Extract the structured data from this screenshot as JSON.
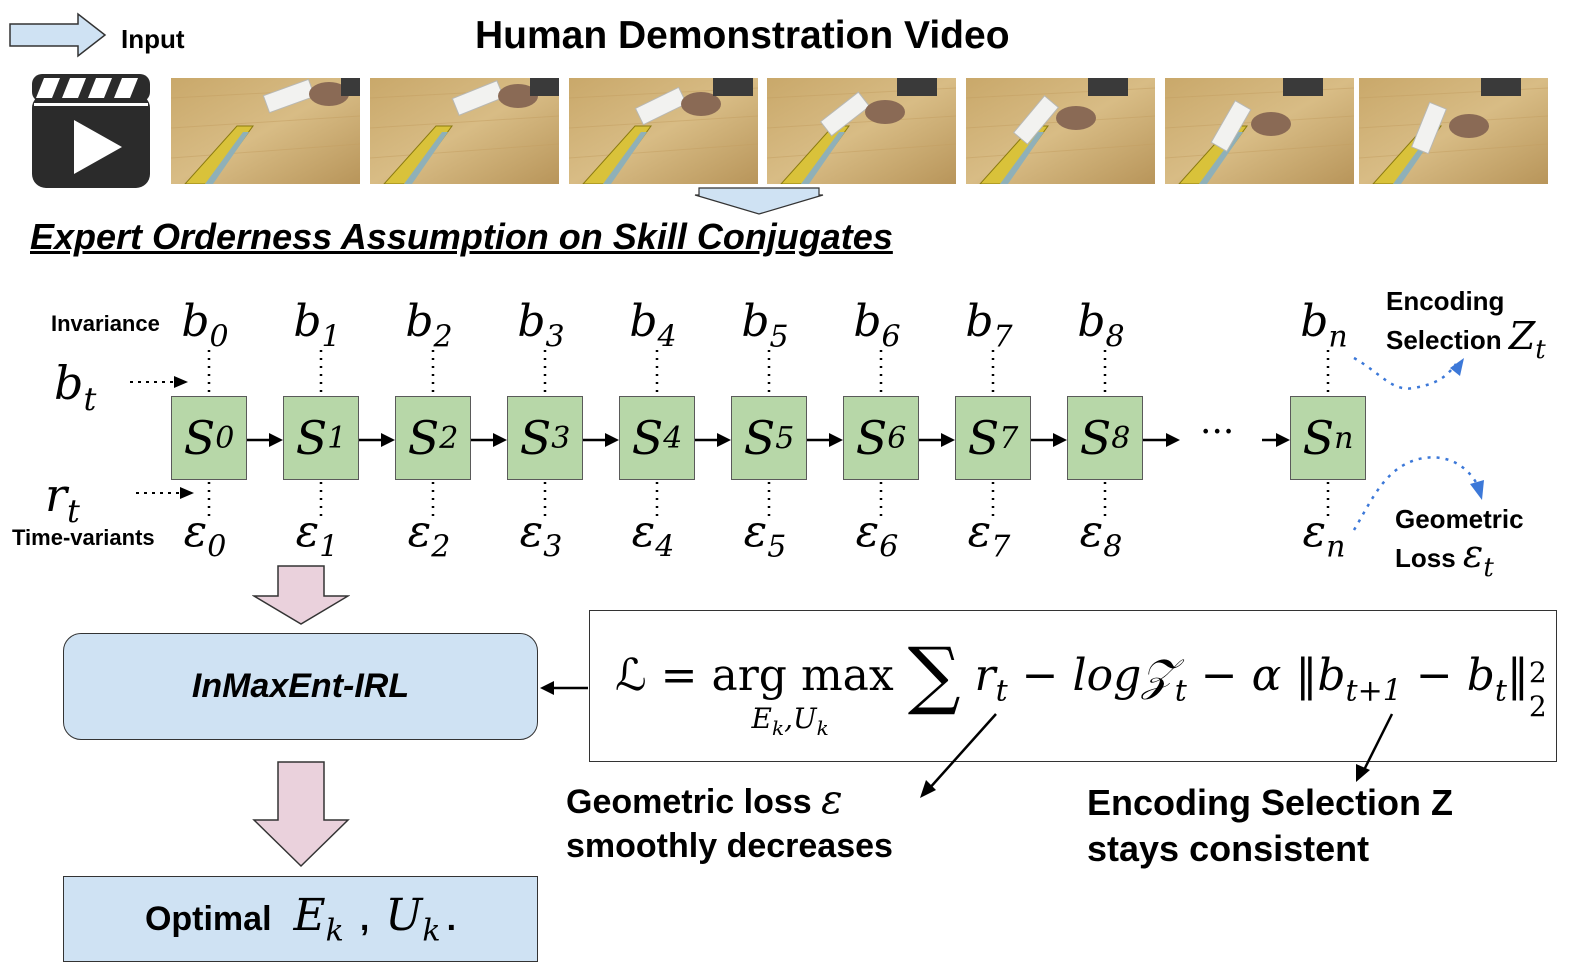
{
  "header": {
    "input_label": "Input",
    "title": "Human Demonstration Video"
  },
  "video": {
    "icon": "video-clapperboard-play-icon",
    "frames": [
      "frame-1",
      "frame-2",
      "frame-3",
      "frame-4",
      "frame-5",
      "frame-6",
      "frame-7"
    ]
  },
  "section": {
    "title": "Expert Orderness Assumption on Skill Conjugates"
  },
  "chain": {
    "invariance_label": "Invariance",
    "time_variants_label": "Time-variants",
    "b_t_base": "b",
    "b_t_sub": "t",
    "r_t_base": "r",
    "r_t_sub": "t",
    "ellipsis": "···",
    "states": [
      {
        "base": "S",
        "sub": "0"
      },
      {
        "base": "S",
        "sub": "1"
      },
      {
        "base": "S",
        "sub": "2"
      },
      {
        "base": "S",
        "sub": "3"
      },
      {
        "base": "S",
        "sub": "4"
      },
      {
        "base": "S",
        "sub": "5"
      },
      {
        "base": "S",
        "sub": "6"
      },
      {
        "base": "S",
        "sub": "7"
      },
      {
        "base": "S",
        "sub": "8"
      },
      {
        "base": "S",
        "sub": "n"
      }
    ],
    "b_labels": [
      {
        "base": "b",
        "sub": "0"
      },
      {
        "base": "b",
        "sub": "1"
      },
      {
        "base": "b",
        "sub": "2"
      },
      {
        "base": "b",
        "sub": "3"
      },
      {
        "base": "b",
        "sub": "4"
      },
      {
        "base": "b",
        "sub": "5"
      },
      {
        "base": "b",
        "sub": "6"
      },
      {
        "base": "b",
        "sub": "7"
      },
      {
        "base": "b",
        "sub": "8"
      },
      {
        "base": "b",
        "sub": "n"
      }
    ],
    "e_labels": [
      {
        "base": "ε",
        "sub": "0"
      },
      {
        "base": "ε",
        "sub": "1"
      },
      {
        "base": "ε",
        "sub": "2"
      },
      {
        "base": "ε",
        "sub": "3"
      },
      {
        "base": "ε",
        "sub": "4"
      },
      {
        "base": "ε",
        "sub": "5"
      },
      {
        "base": "ε",
        "sub": "6"
      },
      {
        "base": "ε",
        "sub": "7"
      },
      {
        "base": "ε",
        "sub": "8"
      },
      {
        "base": "ε",
        "sub": "n"
      }
    ],
    "encoding_selection_line1": "Encoding",
    "encoding_selection_line2": "Selection",
    "encoding_selection_sym_base": "Z",
    "encoding_selection_sym_sub": "t",
    "geometric_loss_line1": "Geometric",
    "geometric_loss_line2": "Loss",
    "geometric_loss_sym_base": "ε",
    "geometric_loss_sym_sub": "t"
  },
  "pipeline": {
    "irl_label": "InMaxEnt-IRL",
    "optimal_label": "Optimal",
    "ek_base": "E",
    "ek_sub": "k",
    "comma": ",",
    "uk_base": "U",
    "uk_sub": "k",
    "period": "."
  },
  "equation": {
    "lhs": "ℒ = ",
    "argmax": "arg max",
    "argmax_under": "E",
    "argmax_under_sub1": "k",
    "argmax_under_mid": ",U",
    "argmax_under_sub2": "k",
    "sum": "∑",
    "r_base": "r",
    "r_sub": "t",
    "minus1": " − ",
    "log_text": "log",
    "z_base": "𝒵",
    "z_sub": "t",
    "minus2": " − ",
    "alpha": "α",
    "norm_open": " ‖",
    "bt1_base": "b",
    "bt1_sub": "t+1",
    "minus3": " − ",
    "bt_base": "b",
    "bt_sub": "t",
    "norm_close": "‖",
    "sup": "2",
    "sub2": "2"
  },
  "callouts": {
    "geo_line1": "Geometric loss",
    "geo_sym": "ε",
    "geo_line2": "smoothly decreases",
    "enc_line1": "Encoding Selection Z",
    "enc_line2": "stays consistent"
  },
  "colors": {
    "state_fill": "#b7d7a8",
    "blue_box": "#cfe2f3",
    "pink_arrow": "#ead1dc",
    "input_arrow": "#cfe2f3",
    "dotted_blue": "#3c78d8"
  }
}
